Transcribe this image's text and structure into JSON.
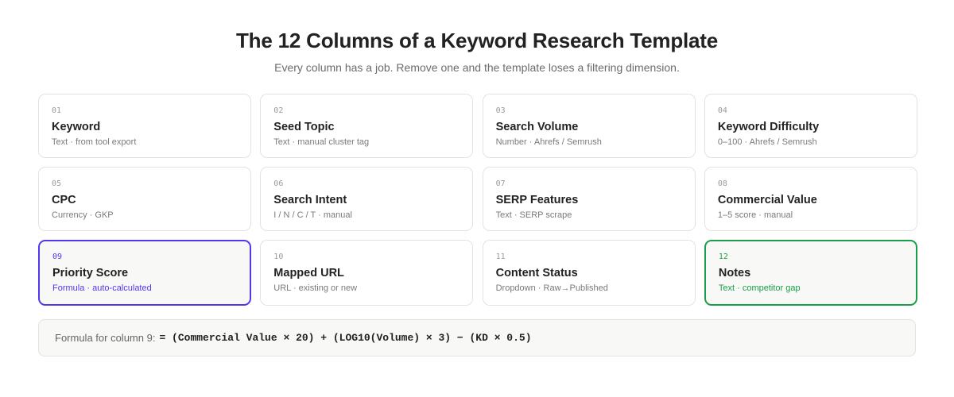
{
  "header": {
    "title": "The 12 Columns of a Keyword Research Template",
    "subtitle": "Every column has a job. Remove one and the template loses a filtering dimension."
  },
  "colors": {
    "highlight_purple": "#5038ec",
    "highlight_green": "#1a9e4a"
  },
  "columns": [
    {
      "num": "01",
      "name": "Keyword",
      "desc": "Text · from tool export"
    },
    {
      "num": "02",
      "name": "Seed Topic",
      "desc": "Text · manual cluster tag"
    },
    {
      "num": "03",
      "name": "Search Volume",
      "desc": "Number · Ahrefs / Semrush"
    },
    {
      "num": "04",
      "name": "Keyword Difficulty",
      "desc": "0–100 · Ahrefs / Semrush"
    },
    {
      "num": "05",
      "name": "CPC",
      "desc": "Currency · GKP"
    },
    {
      "num": "06",
      "name": "Search Intent",
      "desc": "I / N / C / T · manual"
    },
    {
      "num": "07",
      "name": "SERP Features",
      "desc": "Text · SERP scrape"
    },
    {
      "num": "08",
      "name": "Commercial Value",
      "desc": "1–5 score · manual"
    },
    {
      "num": "09",
      "name": "Priority Score",
      "desc": "Formula · auto-calculated"
    },
    {
      "num": "10",
      "name": "Mapped URL",
      "desc": "URL · existing or new"
    },
    {
      "num": "11",
      "name": "Content Status",
      "desc": "Dropdown · Raw→Published"
    },
    {
      "num": "12",
      "name": "Notes",
      "desc": "Text · competitor gap"
    }
  ],
  "formula": {
    "label": "Formula for column 9:",
    "expression": "= (Commercial Value × 20) + (LOG10(Volume) × 3) − (KD × 0.5)"
  }
}
